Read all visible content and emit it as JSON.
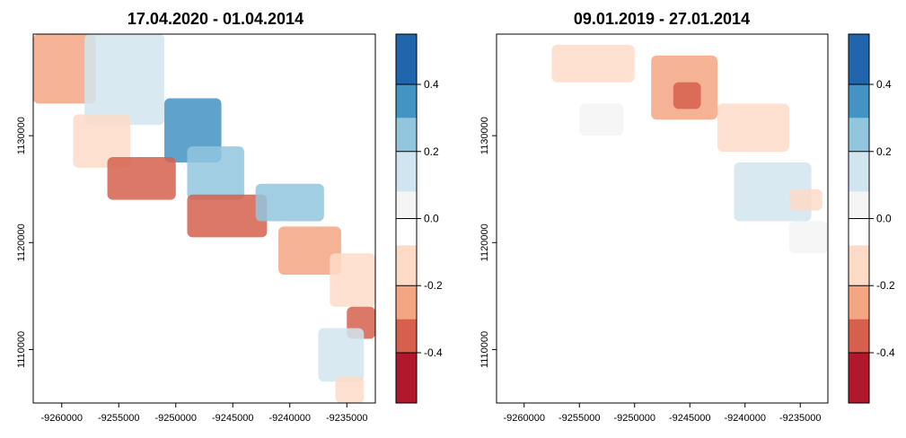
{
  "chart_data": [
    {
      "type": "heatmap",
      "title": "17.04.2020 - 01.04.2014",
      "xlabel": "",
      "ylabel": "",
      "xlim": [
        -9262500,
        -9232500
      ],
      "ylim": [
        1105000,
        1139500
      ],
      "xticks": [
        -9260000,
        -9255000,
        -9250000,
        -9245000,
        -9240000,
        -9235000
      ],
      "yticks": [
        1110000,
        1120000,
        1130000
      ],
      "legend": "right",
      "colorbar": {
        "range": [
          -0.55,
          0.55
        ],
        "ticks": [
          0.4,
          0.2,
          0.0,
          -0.2,
          -0.4
        ],
        "bins": [
          {
            "from": 0.4,
            "to": 0.55,
            "color": "#2166ac"
          },
          {
            "from": 0.3,
            "to": 0.4,
            "color": "#4393c3"
          },
          {
            "from": 0.2,
            "to": 0.3,
            "color": "#92c5de"
          },
          {
            "from": 0.08,
            "to": 0.2,
            "color": "#d1e5f0"
          },
          {
            "from": 0.0,
            "to": 0.08,
            "color": "#f5f5f5"
          },
          {
            "from": -0.08,
            "to": 0.0,
            "color": "#ffffff"
          },
          {
            "from": -0.2,
            "to": -0.08,
            "color": "#fddbc7"
          },
          {
            "from": -0.3,
            "to": -0.2,
            "color": "#f4a582"
          },
          {
            "from": -0.4,
            "to": -0.3,
            "color": "#d6604d"
          },
          {
            "from": -0.55,
            "to": -0.4,
            "color": "#b2182b"
          }
        ]
      },
      "regions": [
        {
          "x": [
            -9262500,
            -9257000
          ],
          "y": [
            1133000,
            1139500
          ],
          "value": -0.28
        },
        {
          "x": [
            -9258000,
            -9251000
          ],
          "y": [
            1131000,
            1139500
          ],
          "value": 0.12
        },
        {
          "x": [
            -9251000,
            -9246000
          ],
          "y": [
            1127500,
            1133500
          ],
          "value": 0.3
        },
        {
          "x": [
            -9259000,
            -9254000
          ],
          "y": [
            1127000,
            1132000
          ],
          "value": -0.2
        },
        {
          "x": [
            -9256000,
            -9250000
          ],
          "y": [
            1124000,
            1128000
          ],
          "value": -0.32
        },
        {
          "x": [
            -9249000,
            -9244000
          ],
          "y": [
            1124000,
            1129000
          ],
          "value": 0.22
        },
        {
          "x": [
            -9249000,
            -9242000
          ],
          "y": [
            1120500,
            1124500
          ],
          "value": -0.36
        },
        {
          "x": [
            -9243000,
            -9237000
          ],
          "y": [
            1122000,
            1125500
          ],
          "value": 0.24
        },
        {
          "x": [
            -9241000,
            -9235500
          ],
          "y": [
            1117000,
            1121500
          ],
          "value": -0.3
        },
        {
          "x": [
            -9236500,
            -9232500
          ],
          "y": [
            1114000,
            1119000
          ],
          "value": -0.2
        },
        {
          "x": [
            -9235000,
            -9232500
          ],
          "y": [
            1111000,
            1114000
          ],
          "value": -0.35
        },
        {
          "x": [
            -9237500,
            -9233500
          ],
          "y": [
            1107000,
            1112000
          ],
          "value": 0.12
        },
        {
          "x": [
            -9236000,
            -9233500
          ],
          "y": [
            1105000,
            1107500
          ],
          "value": -0.2
        }
      ]
    },
    {
      "type": "heatmap",
      "title": "09.01.2019 - 27.01.2014",
      "xlabel": "",
      "ylabel": "",
      "xlim": [
        -9262500,
        -9232500
      ],
      "ylim": [
        1105000,
        1139500
      ],
      "xticks": [
        -9260000,
        -9255000,
        -9250000,
        -9245000,
        -9240000,
        -9235000
      ],
      "yticks": [
        1110000,
        1120000,
        1130000
      ],
      "legend": "right",
      "colorbar": {
        "range": [
          -0.55,
          0.55
        ],
        "ticks": [
          0.4,
          0.2,
          0.0,
          -0.2,
          -0.4
        ],
        "bins": [
          {
            "from": 0.4,
            "to": 0.55,
            "color": "#2166ac"
          },
          {
            "from": 0.3,
            "to": 0.4,
            "color": "#4393c3"
          },
          {
            "from": 0.2,
            "to": 0.3,
            "color": "#92c5de"
          },
          {
            "from": 0.08,
            "to": 0.2,
            "color": "#d1e5f0"
          },
          {
            "from": 0.0,
            "to": 0.08,
            "color": "#f5f5f5"
          },
          {
            "from": -0.08,
            "to": 0.0,
            "color": "#ffffff"
          },
          {
            "from": -0.2,
            "to": -0.08,
            "color": "#fddbc7"
          },
          {
            "from": -0.3,
            "to": -0.2,
            "color": "#f4a582"
          },
          {
            "from": -0.4,
            "to": -0.3,
            "color": "#d6604d"
          },
          {
            "from": -0.55,
            "to": -0.4,
            "color": "#b2182b"
          }
        ]
      },
      "regions": [
        {
          "x": [
            -9257500,
            -9250000
          ],
          "y": [
            1135000,
            1138500
          ],
          "value": -0.1
        },
        {
          "x": [
            -9248500,
            -9242500
          ],
          "y": [
            1131500,
            1137500
          ],
          "value": -0.25
        },
        {
          "x": [
            -9246500,
            -9244000
          ],
          "y": [
            1132500,
            1135000
          ],
          "value": -0.38
        },
        {
          "x": [
            -9242500,
            -9236000
          ],
          "y": [
            1128500,
            1133000
          ],
          "value": -0.18
        },
        {
          "x": [
            -9241000,
            -9234000
          ],
          "y": [
            1122000,
            1127500
          ],
          "value": 0.14
        },
        {
          "x": [
            -9236000,
            -9233000
          ],
          "y": [
            1123000,
            1125000
          ],
          "value": -0.12
        },
        {
          "x": [
            -9236000,
            -9232500
          ],
          "y": [
            1119000,
            1122000
          ],
          "value": 0.06
        },
        {
          "x": [
            -9255000,
            -9251000
          ],
          "y": [
            1130000,
            1133000
          ],
          "value": 0.06
        }
      ]
    }
  ]
}
